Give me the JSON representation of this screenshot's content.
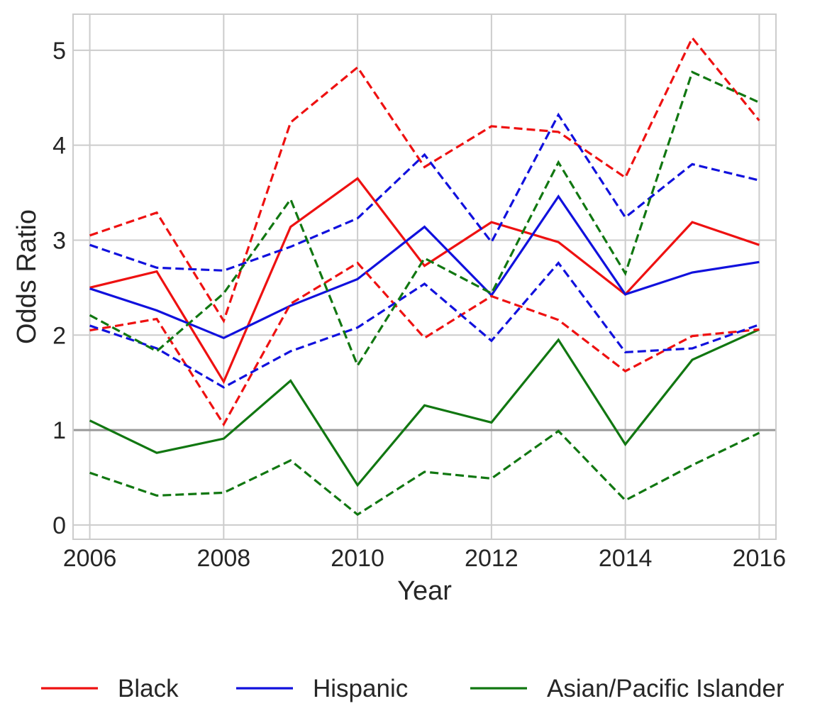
{
  "chart_data": {
    "type": "line",
    "title": "",
    "xlabel": "Year",
    "ylabel": "Odds Ratio",
    "xlim": [
      2005.75,
      2016.25
    ],
    "ylim": [
      -0.15,
      5.38
    ],
    "x_ticks": [
      2006,
      2008,
      2010,
      2012,
      2014,
      2016
    ],
    "x_tick_labels": [
      "2006",
      "2008",
      "2010",
      "2012",
      "2014",
      "2016"
    ],
    "y_ticks": [
      0,
      1,
      2,
      3,
      4,
      5
    ],
    "y_tick_labels": [
      "0",
      "1",
      "2",
      "3",
      "4",
      "5"
    ],
    "grid": true,
    "legend_position": "bottom, outside plot",
    "reference_line": {
      "y": 1,
      "color": "#999999"
    },
    "x": [
      2006,
      2007,
      2008,
      2009,
      2010,
      2011,
      2012,
      2013,
      2014,
      2015,
      2016
    ],
    "series": [
      {
        "name": "Black",
        "color": "#ee1111",
        "style": "solid",
        "values": [
          2.5,
          2.67,
          1.51,
          3.14,
          3.65,
          2.73,
          3.19,
          2.98,
          2.43,
          3.19,
          2.95
        ]
      },
      {
        "name": "Hispanic",
        "color": "#1111dd",
        "style": "solid",
        "values": [
          2.49,
          2.26,
          1.97,
          2.31,
          2.59,
          3.14,
          2.42,
          3.46,
          2.43,
          2.66,
          2.77
        ]
      },
      {
        "name": "Asian/Pacific Islander",
        "color": "#117711",
        "style": "solid",
        "values": [
          1.1,
          0.76,
          0.91,
          1.52,
          0.42,
          1.26,
          1.08,
          1.95,
          0.85,
          1.74,
          2.06
        ]
      },
      {
        "color": "#ee1111",
        "style": "dashed",
        "values": [
          3.05,
          3.29,
          2.15,
          4.24,
          4.82,
          3.77,
          4.2,
          4.14,
          3.66,
          5.13,
          4.26
        ]
      },
      {
        "color": "#ee1111",
        "style": "dashed",
        "values": [
          2.05,
          2.17,
          1.06,
          2.33,
          2.76,
          1.97,
          2.41,
          2.16,
          1.62,
          1.99,
          2.06
        ]
      },
      {
        "color": "#1111dd",
        "style": "dashed",
        "values": [
          2.95,
          2.71,
          2.68,
          2.93,
          3.23,
          3.9,
          2.98,
          4.32,
          3.24,
          3.8,
          3.63
        ]
      },
      {
        "color": "#1111dd",
        "style": "dashed",
        "values": [
          2.1,
          1.86,
          1.45,
          1.83,
          2.08,
          2.54,
          1.94,
          2.76,
          1.82,
          1.86,
          2.11
        ]
      },
      {
        "color": "#117711",
        "style": "dashed",
        "values": [
          2.21,
          1.83,
          2.44,
          3.43,
          1.68,
          2.81,
          2.44,
          3.82,
          2.65,
          4.77,
          4.45
        ]
      },
      {
        "color": "#117711",
        "style": "dashed",
        "values": [
          0.55,
          0.31,
          0.34,
          0.68,
          0.11,
          0.56,
          0.49,
          0.99,
          0.26,
          0.63,
          0.97
        ]
      }
    ],
    "legend": [
      {
        "label": "Black",
        "color": "#ee1111"
      },
      {
        "label": "Hispanic",
        "color": "#1111dd"
      },
      {
        "label": "Asian/Pacific Islander",
        "color": "#117711"
      }
    ]
  }
}
